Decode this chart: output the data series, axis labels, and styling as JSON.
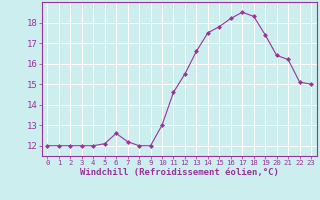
{
  "x": [
    0,
    1,
    2,
    3,
    4,
    5,
    6,
    7,
    8,
    9,
    10,
    11,
    12,
    13,
    14,
    15,
    16,
    17,
    18,
    19,
    20,
    21,
    22,
    23
  ],
  "y": [
    12.0,
    12.0,
    12.0,
    12.0,
    12.0,
    12.1,
    12.6,
    12.2,
    12.0,
    12.0,
    13.0,
    14.6,
    15.5,
    16.6,
    17.5,
    17.8,
    18.2,
    18.5,
    18.3,
    17.4,
    16.4,
    16.2,
    15.1,
    15.0
  ],
  "line_color": "#993399",
  "marker": "D",
  "marker_size": 2,
  "background_color": "#cceeee",
  "grid_color": "#ffffff",
  "xlabel": "Windchill (Refroidissement éolien,°C)",
  "xlabel_color": "#993399",
  "tick_color": "#993399",
  "spine_color": "#993399",
  "ylim": [
    11.5,
    19.0
  ],
  "xlim": [
    -0.5,
    23.5
  ],
  "yticks": [
    12,
    13,
    14,
    15,
    16,
    17,
    18
  ],
  "xticks": [
    0,
    1,
    2,
    3,
    4,
    5,
    6,
    7,
    8,
    9,
    10,
    11,
    12,
    13,
    14,
    15,
    16,
    17,
    18,
    19,
    20,
    21,
    22,
    23
  ],
  "xlabel_fontsize": 6.5,
  "xtick_fontsize": 5.2,
  "ytick_fontsize": 6.5
}
